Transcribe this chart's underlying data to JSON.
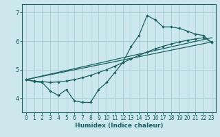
{
  "xlabel": "Humidex (Indice chaleur)",
  "bg_color": "#cce8ec",
  "grid_color": "#aad4d8",
  "line_color": "#1a6060",
  "xlim": [
    -0.5,
    23.5
  ],
  "ylim": [
    3.5,
    7.3
  ],
  "xticks": [
    0,
    1,
    2,
    3,
    4,
    5,
    6,
    7,
    8,
    9,
    10,
    11,
    12,
    13,
    14,
    15,
    16,
    17,
    18,
    19,
    20,
    21,
    22,
    23
  ],
  "yticks": [
    4,
    5,
    6,
    7
  ],
  "line1_x": [
    0,
    1,
    2,
    3,
    4,
    5,
    6,
    7,
    8,
    9,
    10,
    11,
    12,
    13,
    14,
    15,
    16,
    17,
    18,
    19,
    20,
    21,
    22,
    23
  ],
  "line1_y": [
    4.65,
    4.6,
    4.58,
    4.55,
    4.57,
    4.6,
    4.65,
    4.72,
    4.8,
    4.9,
    5.0,
    5.12,
    5.25,
    5.37,
    5.5,
    5.62,
    5.73,
    5.82,
    5.9,
    5.97,
    6.03,
    6.08,
    6.12,
    5.97
  ],
  "line2_x": [
    0,
    1,
    2,
    3,
    4,
    5,
    6,
    7,
    8,
    9,
    10,
    11,
    12,
    13,
    14,
    15,
    16,
    17,
    18,
    19,
    20,
    21,
    22,
    23
  ],
  "line2_y": [
    4.65,
    4.58,
    4.55,
    4.25,
    4.1,
    4.3,
    3.9,
    3.85,
    3.85,
    4.3,
    4.55,
    4.9,
    5.25,
    5.8,
    6.2,
    6.9,
    6.75,
    6.5,
    6.5,
    6.45,
    6.35,
    6.25,
    6.2,
    5.95
  ],
  "line3_x": [
    0,
    23
  ],
  "line3_y": [
    4.65,
    5.97
  ],
  "line4_x": [
    0,
    23
  ],
  "line4_y": [
    4.65,
    6.12
  ]
}
